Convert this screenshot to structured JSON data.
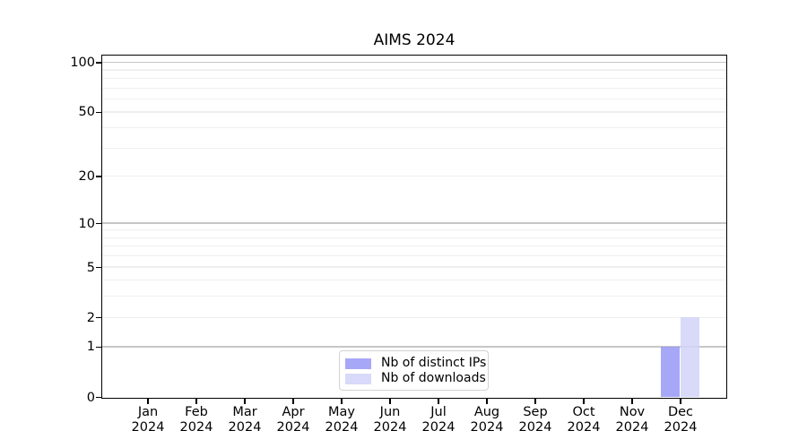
{
  "chart_data": {
    "type": "bar",
    "title": "AIMS 2024",
    "categories": [
      "Jan 2024",
      "Feb 2024",
      "Mar 2024",
      "Apr 2024",
      "May 2024",
      "Jun 2024",
      "Jul 2024",
      "Aug 2024",
      "Sep 2024",
      "Oct 2024",
      "Nov 2024",
      "Dec 2024"
    ],
    "series": [
      {
        "name": "Nb of distinct IPs",
        "color": "#9b9bf6",
        "values": [
          0,
          0,
          0,
          0,
          0,
          0,
          0,
          0,
          0,
          0,
          0,
          1
        ]
      },
      {
        "name": "Nb of downloads",
        "color": "#d4d4f8",
        "values": [
          0,
          0,
          0,
          0,
          0,
          0,
          0,
          0,
          0,
          0,
          0,
          2
        ]
      }
    ],
    "y_axis": {
      "scale": "log1p",
      "labeled_ticks": [
        0,
        1,
        2,
        5,
        10,
        20,
        50,
        100
      ],
      "major_gridlines": [
        1,
        10,
        100
      ],
      "minor_gridlines": [
        2,
        3,
        4,
        5,
        6,
        7,
        8,
        9,
        20,
        30,
        40,
        50,
        60,
        70,
        80,
        90
      ],
      "range": [
        0,
        111
      ]
    },
    "x_axis": {
      "label_lines": 2
    },
    "legend": {
      "position": "lower center"
    },
    "grid": true
  }
}
